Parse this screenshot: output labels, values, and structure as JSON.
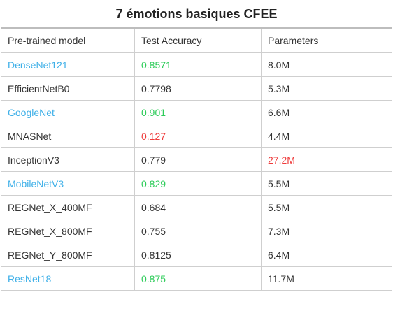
{
  "table": {
    "title": "7 émotions basiques CFEE",
    "headers": [
      "Pre-trained model",
      "Test Accuracy",
      "Parameters"
    ],
    "rows": [
      {
        "model": "DenseNet121",
        "accuracy": "0.8571",
        "parameters": "8.0M",
        "model_style": "blue",
        "accuracy_style": "green",
        "parameters_style": ""
      },
      {
        "model": "EfficientNetB0",
        "accuracy": "0.7798",
        "parameters": "5.3M",
        "model_style": "",
        "accuracy_style": "",
        "parameters_style": ""
      },
      {
        "model": "GoogleNet",
        "accuracy": "0.901",
        "parameters": "6.6M",
        "model_style": "blue",
        "accuracy_style": "green",
        "parameters_style": ""
      },
      {
        "model": "MNASNet",
        "accuracy": "0.127",
        "parameters": "4.4M",
        "model_style": "",
        "accuracy_style": "red",
        "parameters_style": ""
      },
      {
        "model": "InceptionV3",
        "accuracy": "0.779",
        "parameters": "27.2M",
        "model_style": "",
        "accuracy_style": "",
        "parameters_style": "red"
      },
      {
        "model": "MobileNetV3",
        "accuracy": "0.829",
        "parameters": "5.5M",
        "model_style": "blue",
        "accuracy_style": "green",
        "parameters_style": ""
      },
      {
        "model": "REGNet_X_400MF",
        "accuracy": "0.684",
        "parameters": "5.5M",
        "model_style": "",
        "accuracy_style": "",
        "parameters_style": ""
      },
      {
        "model": "REGNet_X_800MF",
        "accuracy": "0.755",
        "parameters": "7.3M",
        "model_style": "",
        "accuracy_style": "",
        "parameters_style": ""
      },
      {
        "model": "REGNet_Y_800MF",
        "accuracy": "0.8125",
        "parameters": "6.4M",
        "model_style": "",
        "accuracy_style": "",
        "parameters_style": ""
      },
      {
        "model": "ResNet18",
        "accuracy": "0.875",
        "parameters": "11.7M",
        "model_style": "blue",
        "accuracy_style": "green",
        "parameters_style": ""
      }
    ]
  },
  "colors": {
    "highlight_blue": "#3fb0e8",
    "highlight_green": "#2ecc5a",
    "highlight_red": "#ee3b3b",
    "text": "#333333",
    "border": "#cfcfcf"
  }
}
